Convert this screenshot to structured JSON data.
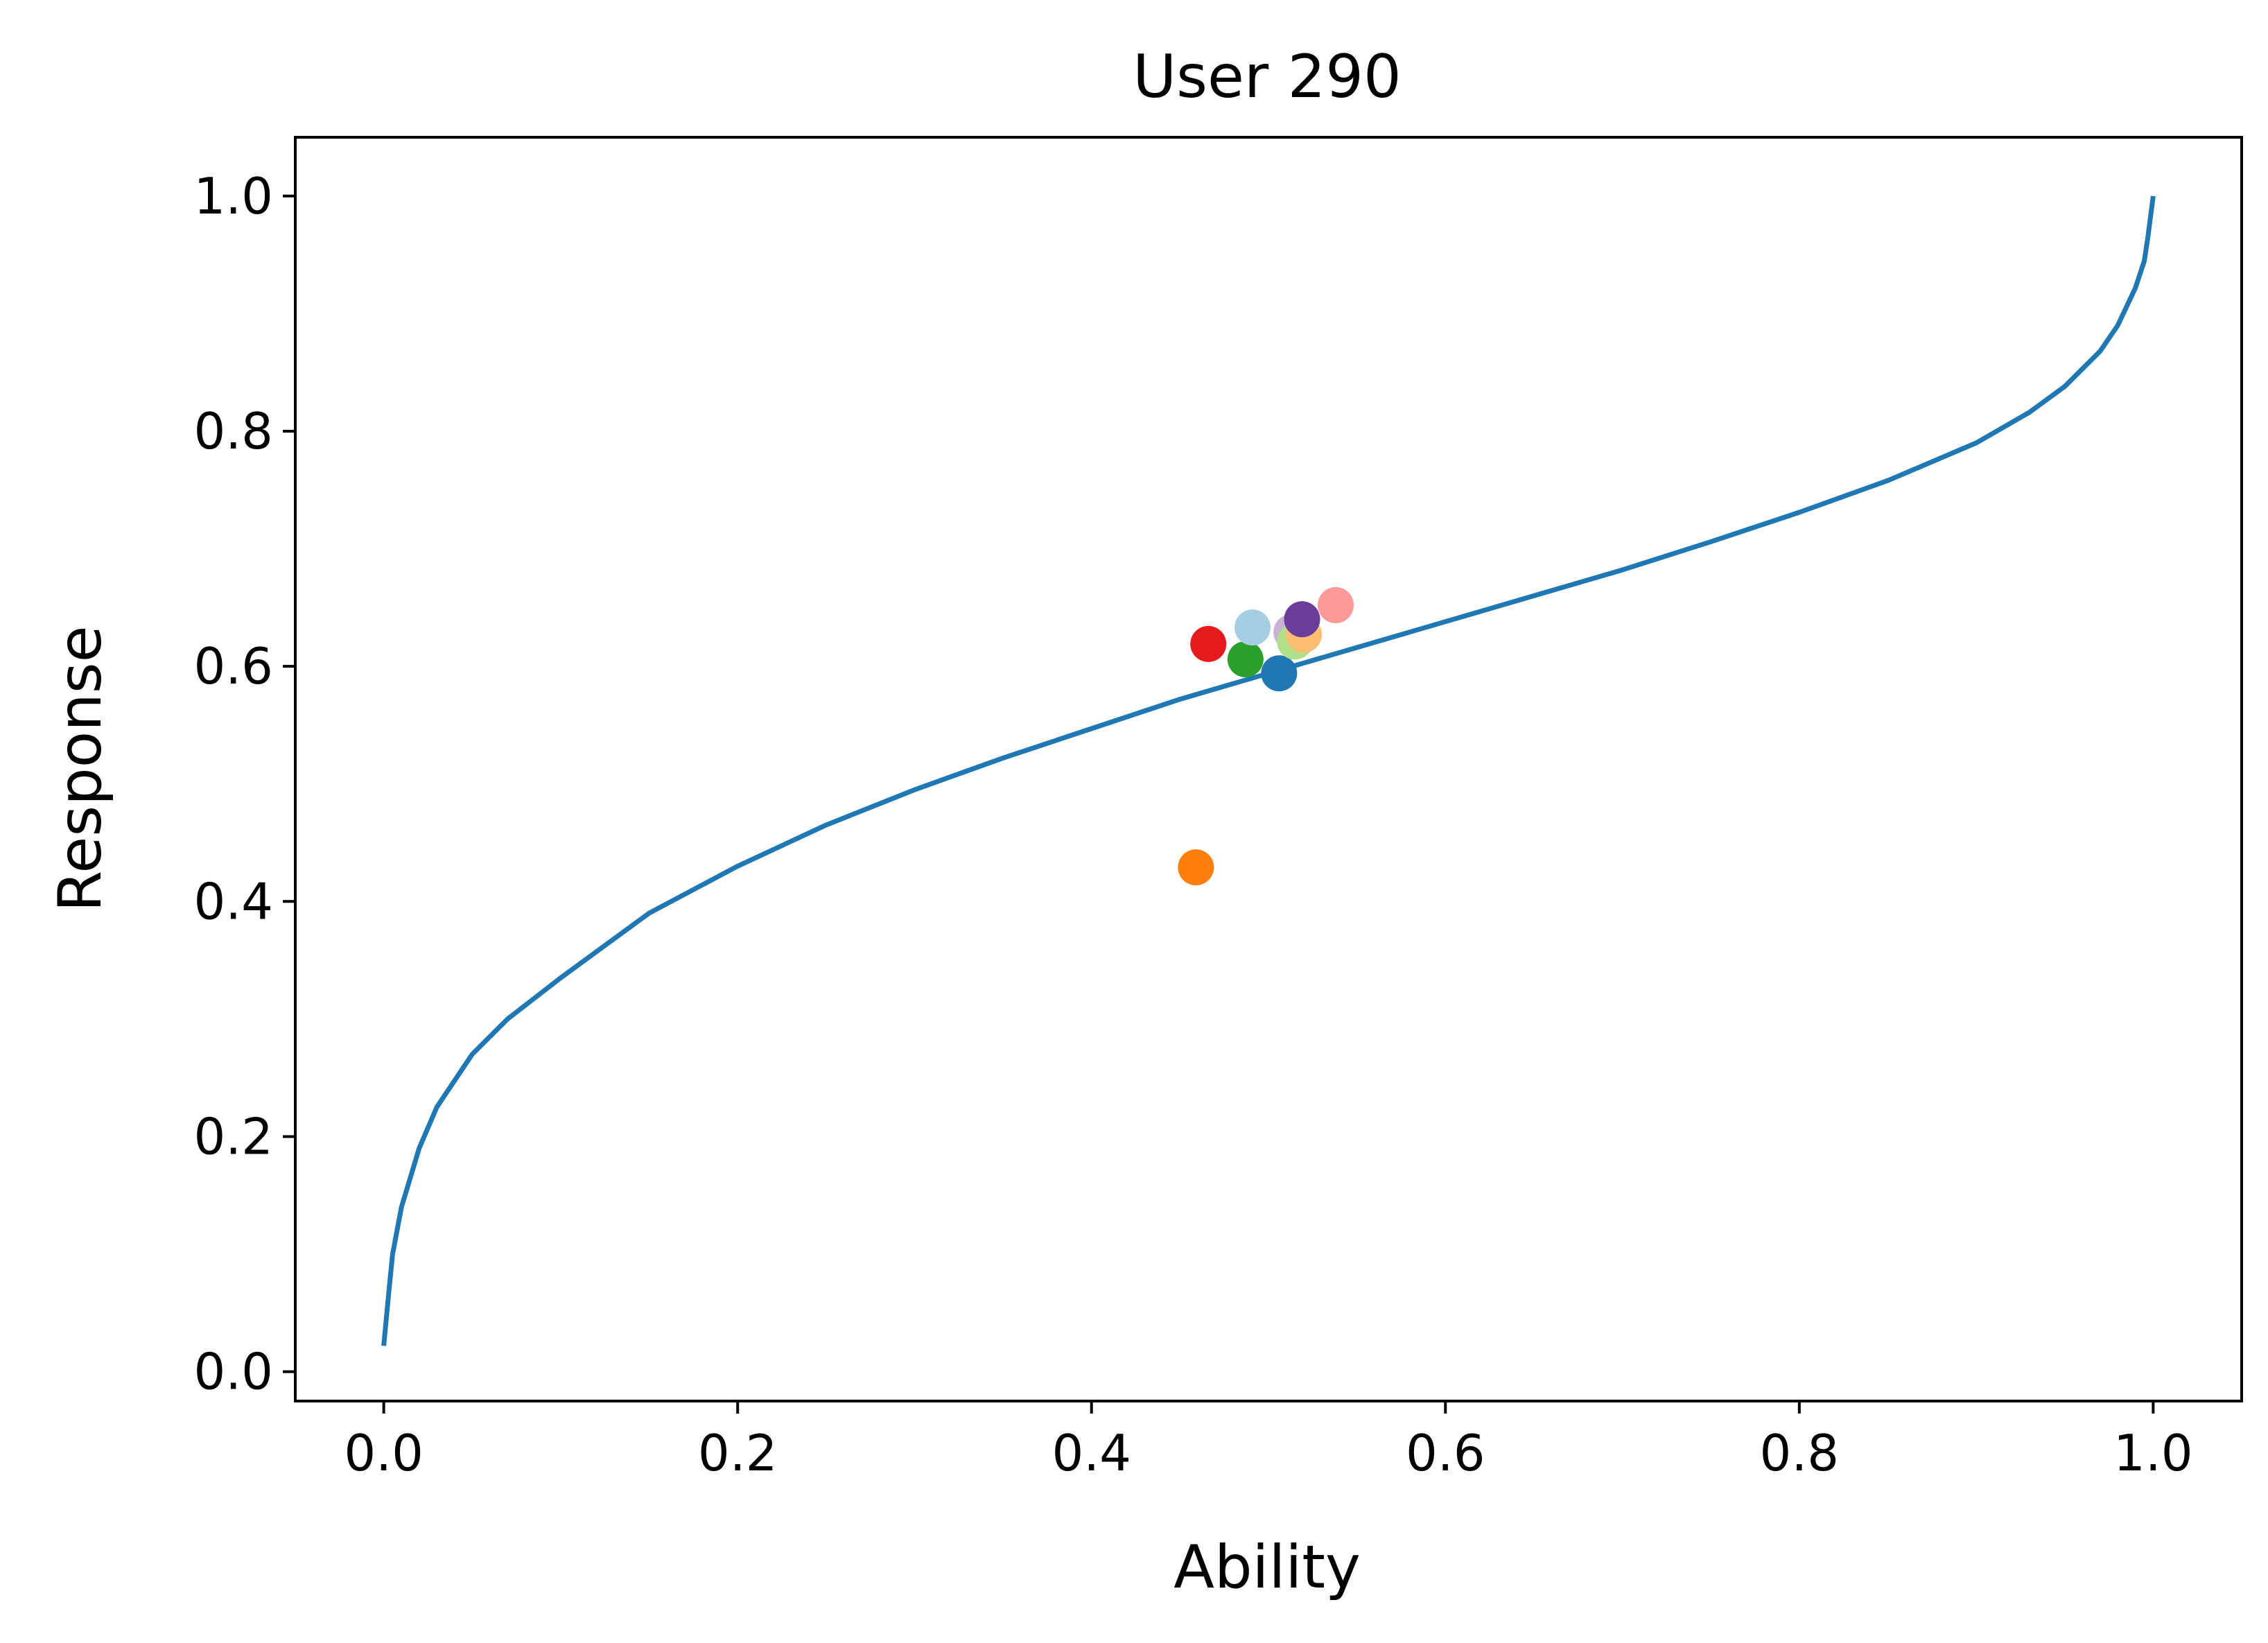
{
  "chart_data": {
    "type": "scatter",
    "title": "User 290",
    "xlabel": "Ability",
    "ylabel": "Response",
    "xlim": [
      -0.05,
      1.05
    ],
    "ylim": [
      -0.025,
      1.05
    ],
    "xticks": [
      "0.0",
      "0.2",
      "0.4",
      "0.6",
      "0.8",
      "1.0"
    ],
    "yticks": [
      "0.0",
      "0.2",
      "0.4",
      "0.6",
      "0.8",
      "1.0"
    ],
    "grid": false,
    "legend": "none",
    "curve": {
      "type": "line",
      "color": "#1f77b4",
      "x": [
        0.0,
        0.003,
        0.005,
        0.01,
        0.02,
        0.03,
        0.05,
        0.07,
        0.1,
        0.15,
        0.2,
        0.25,
        0.3,
        0.35,
        0.4,
        0.45,
        0.5,
        0.55,
        0.6,
        0.65,
        0.7,
        0.75,
        0.8,
        0.85,
        0.9,
        0.93,
        0.95,
        0.97,
        0.98,
        0.99,
        0.995,
        0.997,
        1.0
      ],
      "y": [
        0.022,
        0.07,
        0.1,
        0.14,
        0.19,
        0.225,
        0.27,
        0.3,
        0.335,
        0.39,
        0.43,
        0.465,
        0.495,
        0.522,
        0.547,
        0.572,
        0.594,
        0.616,
        0.638,
        0.66,
        0.682,
        0.706,
        0.731,
        0.758,
        0.79,
        0.816,
        0.838,
        0.868,
        0.89,
        0.922,
        0.945,
        0.965,
        1.0
      ]
    },
    "points": [
      {
        "x": 0.459,
        "y": 0.429,
        "color": "#ff7f0e"
      },
      {
        "x": 0.466,
        "y": 0.619,
        "color": "#e41a1c"
      },
      {
        "x": 0.487,
        "y": 0.606,
        "color": "#2ca02c"
      },
      {
        "x": 0.491,
        "y": 0.633,
        "color": "#a6cee3"
      },
      {
        "x": 0.506,
        "y": 0.594,
        "color": "#1f77b4"
      },
      {
        "x": 0.513,
        "y": 0.629,
        "color": "#cab2d6"
      },
      {
        "x": 0.515,
        "y": 0.621,
        "color": "#b2df8a"
      },
      {
        "x": 0.52,
        "y": 0.627,
        "color": "#fdbf6f"
      },
      {
        "x": 0.519,
        "y": 0.64,
        "color": "#6a3d9a"
      },
      {
        "x": 0.538,
        "y": 0.652,
        "color": "#fb9a99"
      }
    ]
  }
}
